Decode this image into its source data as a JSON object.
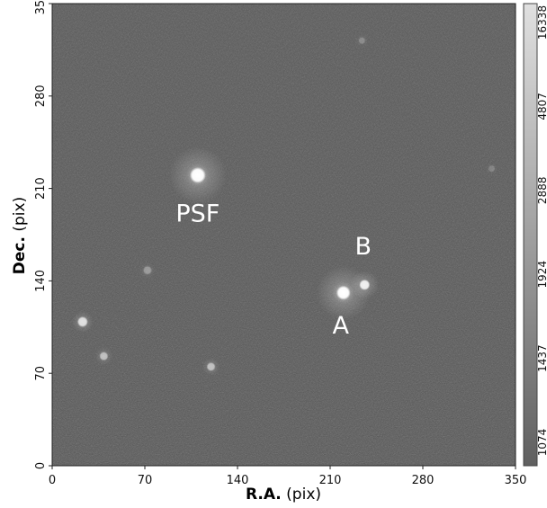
{
  "image": {
    "xlabel_bold": "R.A.",
    "xlabel_unit": "(pix)",
    "ylabel_bold": "Dec.",
    "ylabel_unit": "(pix)",
    "xlim": [
      0,
      350
    ],
    "ylim": [
      0,
      350
    ],
    "xticks": [
      "0",
      "70",
      "140",
      "210",
      "280",
      "350"
    ],
    "yticks": [
      "0",
      "70",
      "140",
      "210",
      "280",
      "350"
    ],
    "background_color": "#585858",
    "annotations": [
      {
        "text": "PSF",
        "x": 110,
        "y": 185
      },
      {
        "text": "B",
        "x": 235,
        "y": 160
      },
      {
        "text": "A",
        "x": 218,
        "y": 100
      }
    ],
    "sources": [
      {
        "id": "psf",
        "x": 110,
        "y": 220,
        "brightness": 1.0,
        "core": 9,
        "halo": 32
      },
      {
        "id": "A",
        "x": 220,
        "y": 131,
        "brightness": 1.0,
        "core": 8,
        "halo": 30
      },
      {
        "id": "B",
        "x": 236,
        "y": 137,
        "brightness": 0.9,
        "core": 6,
        "halo": 16
      },
      {
        "id": "s1",
        "x": 23,
        "y": 109,
        "brightness": 0.8,
        "core": 6,
        "halo": 12
      },
      {
        "id": "s2",
        "x": 39,
        "y": 83,
        "brightness": 0.6,
        "core": 5,
        "halo": 10
      },
      {
        "id": "s3",
        "x": 120,
        "y": 75,
        "brightness": 0.6,
        "core": 5,
        "halo": 10
      },
      {
        "id": "s4",
        "x": 72,
        "y": 148,
        "brightness": 0.35,
        "core": 5,
        "halo": 9
      },
      {
        "id": "s5",
        "x": 234,
        "y": 322,
        "brightness": 0.25,
        "core": 4,
        "halo": 8
      },
      {
        "id": "s6",
        "x": 332,
        "y": 225,
        "brightness": 0.2,
        "core": 4,
        "halo": 7
      }
    ]
  },
  "colorbar": {
    "labels": [
      "1074",
      "1437",
      "1924",
      "2888",
      "4807",
      "16338"
    ],
    "gradient": [
      "#606060",
      "#d8d8d8"
    ]
  }
}
